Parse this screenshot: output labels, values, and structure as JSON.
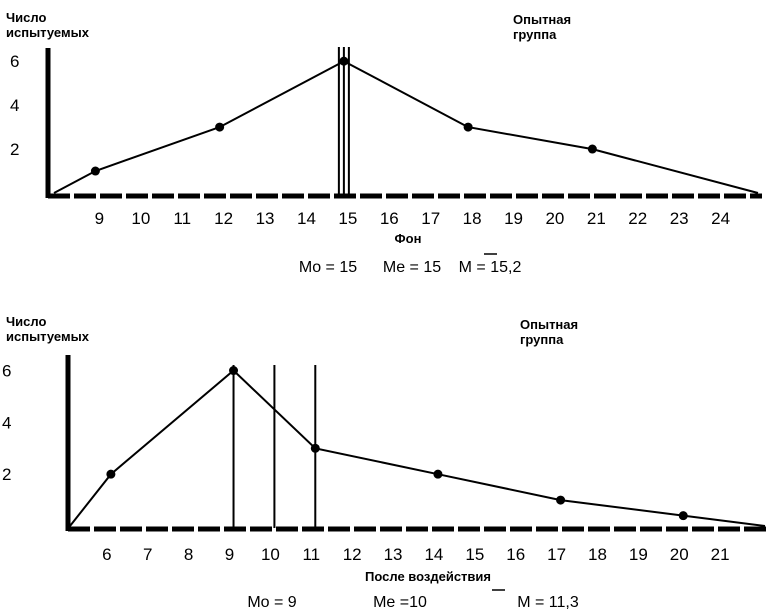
{
  "chart_data": [
    {
      "type": "line",
      "ylabel": "Число испытуемых",
      "group_label": "Опытная группа",
      "xlabel": "Фон",
      "y_ticks": [
        "2",
        "4",
        "6"
      ],
      "x_ticks": [
        "9",
        "10",
        "11",
        "12",
        "13",
        "14",
        "15",
        "16",
        "17",
        "18",
        "19",
        "20",
        "21",
        "22",
        "23",
        "24"
      ],
      "x": [
        8,
        9,
        12,
        15,
        18,
        21,
        25
      ],
      "y": [
        0,
        1,
        3,
        6,
        3,
        2,
        0
      ],
      "ylim": [
        0,
        6.6
      ],
      "vertical_lines": [
        15
      ],
      "stats": {
        "mo": "Mo = 15",
        "me": "Me = 15",
        "mean": "M = 15,2"
      }
    },
    {
      "type": "line",
      "ylabel": "Число испытуемых",
      "group_label": "Опытная группа",
      "xlabel": "После воздействия",
      "y_ticks": [
        "2",
        "4",
        "6"
      ],
      "x_ticks": [
        "6",
        "7",
        "8",
        "9",
        "10",
        "11",
        "12",
        "13",
        "14",
        "15",
        "16",
        "17",
        "18",
        "19",
        "20",
        "21"
      ],
      "x": [
        5,
        6,
        9,
        11,
        14,
        17,
        20,
        22
      ],
      "y": [
        0,
        2,
        6,
        3,
        2,
        1,
        0.4,
        0
      ],
      "ylim": [
        0,
        6.6
      ],
      "vertical_lines": [
        9,
        10,
        11
      ],
      "stats": {
        "mo": "Mo = 9",
        "me": "Me =10",
        "mean": "M = 11,3"
      }
    }
  ]
}
